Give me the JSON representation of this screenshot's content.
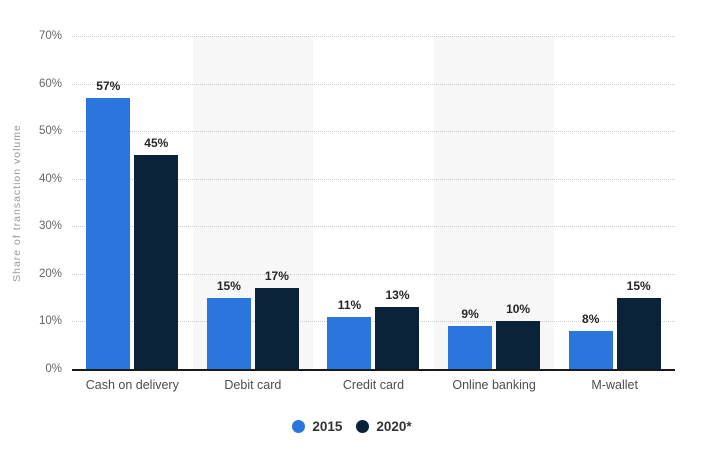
{
  "chart_data": {
    "type": "bar",
    "title": "",
    "categories": [
      "Cash on delivery",
      "Debit card",
      "Credit card",
      "Online banking",
      "M-wallet"
    ],
    "series": [
      {
        "name": "2015",
        "color": "#2a76dd",
        "values": [
          57,
          15,
          11,
          9,
          8
        ]
      },
      {
        "name": "2020*",
        "color": "#0b2339",
        "values": [
          45,
          17,
          13,
          10,
          15
        ]
      }
    ],
    "value_suffix": "%",
    "xlabel": "",
    "ylabel": "Share of transaction volume",
    "ylim": [
      0,
      70
    ],
    "ytick_step": 10,
    "ytick_suffix": "%",
    "grid": true,
    "gridline_style": "dotted",
    "grid_color": "#cccccc",
    "band_color": "#f7f7f7",
    "axis_line_color": "#1a1a1a",
    "tick_label_color": "#666666",
    "category_label_color": "#4d4d4d",
    "value_label_color": "#262626",
    "legend_position": "bottom",
    "legend_text_color": "#333333",
    "background_color": "#ffffff"
  }
}
